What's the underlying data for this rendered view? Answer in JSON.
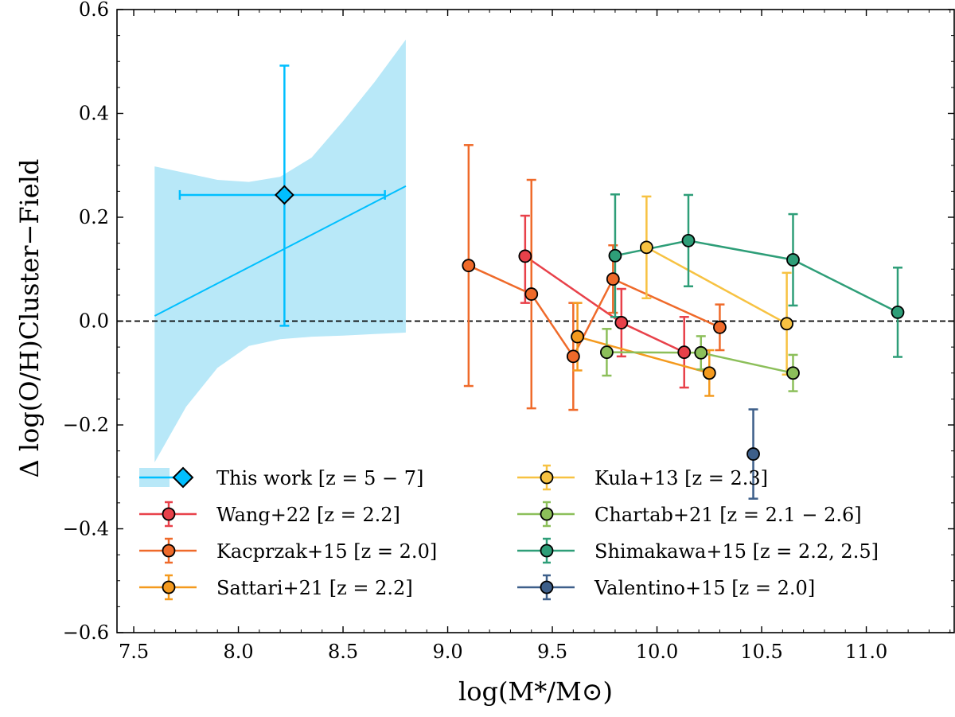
{
  "chart_data": {
    "type": "scatter",
    "xlabel": "log(M*/M⊙)",
    "ylabel": "Δ log(O/H)Cluster−Field",
    "xlim": [
      7.42,
      11.42
    ],
    "ylim": [
      -0.6,
      0.6
    ],
    "xticks": [
      "7.5",
      "8.0",
      "8.5",
      "9.0",
      "9.5",
      "10.0",
      "10.5",
      "11.0"
    ],
    "yticks": [
      "−0.6",
      "−0.4",
      "−0.2",
      "0.0",
      "0.2",
      "0.4",
      "0.6"
    ],
    "reference_line": {
      "y": 0.0,
      "style": "dashed"
    },
    "this_work": {
      "name": "This work [z = 5 − 7]",
      "color": "#00bfff",
      "fill": "#b8e8f8",
      "point": {
        "x": 8.22,
        "y": 0.243,
        "xerr_low": 0.5,
        "xerr_high": 0.48,
        "yerr_low": 0.252,
        "yerr_high": 0.249
      },
      "fit_line": {
        "x": [
          7.6,
          8.8
        ],
        "y": [
          0.01,
          0.26
        ]
      },
      "band": {
        "x": [
          7.6,
          7.75,
          7.9,
          8.05,
          8.2,
          8.35,
          8.5,
          8.65,
          8.8
        ],
        "upper": [
          0.298,
          0.285,
          0.272,
          0.268,
          0.278,
          0.315,
          0.385,
          0.46,
          0.542
        ],
        "lower": [
          -0.272,
          -0.165,
          -0.09,
          -0.048,
          -0.035,
          -0.03,
          -0.028,
          -0.025,
          -0.022
        ]
      }
    },
    "series": [
      {
        "name": "Wang+22",
        "label": "Wang+22 [z = 2.2]",
        "color": "#e8414a",
        "points": [
          {
            "x": 9.37,
            "y": 0.125,
            "err_low": 0.09,
            "err_high": 0.078
          },
          {
            "x": 9.83,
            "y": -0.003,
            "err_low": 0.065,
            "err_high": 0.065
          },
          {
            "x": 10.13,
            "y": -0.06,
            "err_low": 0.068,
            "err_high": 0.068
          }
        ]
      },
      {
        "name": "Kacprzak+15",
        "label": "Kacprzak+15 [z = 2.0]",
        "color": "#ef6a2a",
        "points": [
          {
            "x": 9.1,
            "y": 0.107,
            "err_low": 0.232,
            "err_high": 0.232
          },
          {
            "x": 9.4,
            "y": 0.052,
            "err_low": 0.22,
            "err_high": 0.22
          },
          {
            "x": 9.6,
            "y": -0.068,
            "err_low": 0.103,
            "err_high": 0.103
          },
          {
            "x": 9.79,
            "y": 0.081,
            "err_low": 0.065,
            "err_high": 0.065
          },
          {
            "x": 10.3,
            "y": -0.012,
            "err_low": 0.044,
            "err_high": 0.044
          }
        ]
      },
      {
        "name": "Sattari+21",
        "label": "Sattari+21 [z = 2.2]",
        "color": "#f49a1e",
        "points": [
          {
            "x": 9.62,
            "y": -0.03,
            "err_low": 0.065,
            "err_high": 0.065
          },
          {
            "x": 10.25,
            "y": -0.1,
            "err_low": 0.044,
            "err_high": 0.044
          }
        ]
      },
      {
        "name": "Kula+13",
        "label": "Kula+13 [z = 2.3]",
        "color": "#f7c242",
        "points": [
          {
            "x": 9.95,
            "y": 0.142,
            "err_low": 0.098,
            "err_high": 0.098
          },
          {
            "x": 10.62,
            "y": -0.005,
            "err_low": 0.098,
            "err_high": 0.098
          }
        ]
      },
      {
        "name": "Chartab+21",
        "label": "Chartab+21 [z = 2.1 − 2.6]",
        "color": "#8cbf5a",
        "points": [
          {
            "x": 9.76,
            "y": -0.06,
            "err_low": 0.045,
            "err_high": 0.045
          },
          {
            "x": 10.21,
            "y": -0.061,
            "err_low": 0.032,
            "err_high": 0.032
          },
          {
            "x": 10.65,
            "y": -0.1,
            "err_low": 0.035,
            "err_high": 0.035
          }
        ]
      },
      {
        "name": "Shimakawa+15",
        "label": "Shimakawa+15 [z = 2.2, 2.5]",
        "color": "#2e9e78",
        "points": [
          {
            "x": 9.8,
            "y": 0.126,
            "err_low": 0.118,
            "err_high": 0.118
          },
          {
            "x": 10.15,
            "y": 0.155,
            "err_low": 0.088,
            "err_high": 0.088
          },
          {
            "x": 10.65,
            "y": 0.118,
            "err_low": 0.088,
            "err_high": 0.088
          },
          {
            "x": 11.15,
            "y": 0.017,
            "err_low": 0.086,
            "err_high": 0.086
          }
        ]
      },
      {
        "name": "Valentino+15",
        "label": "Valentino+15 [z = 2.0]",
        "color": "#3d5f8a",
        "points": [
          {
            "x": 10.46,
            "y": -0.256,
            "err_low": 0.086,
            "err_high": 0.086
          }
        ]
      }
    ],
    "legend": {
      "placement": "bottom",
      "columns": 2
    }
  }
}
